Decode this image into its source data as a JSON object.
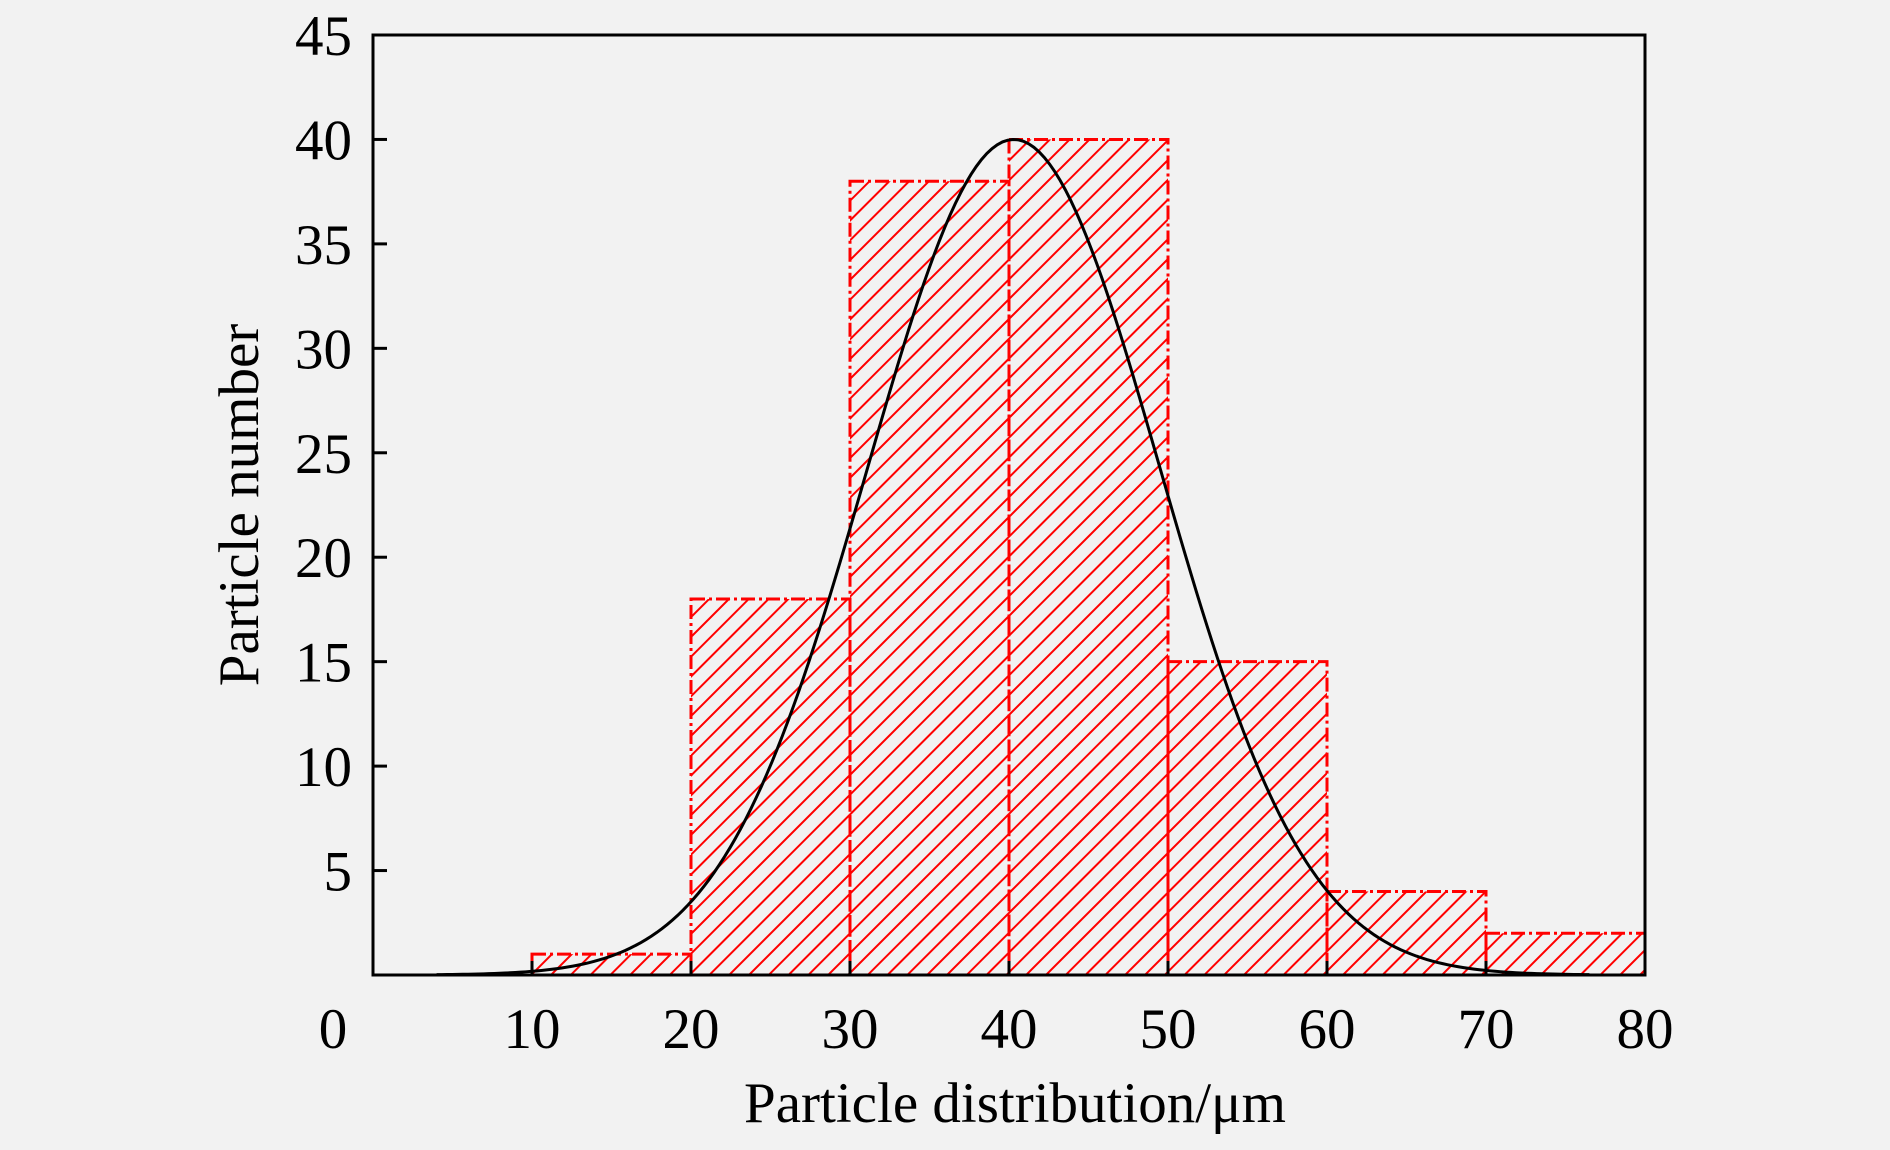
{
  "chart_data": {
    "type": "bar",
    "subtype": "histogram-with-fit",
    "title": "",
    "xlabel": "Particle distribution/μm",
    "ylabel": "Particle number",
    "xlim": [
      0,
      80
    ],
    "ylim": [
      0,
      45
    ],
    "x_ticks": [
      0,
      10,
      20,
      30,
      40,
      50,
      60,
      70,
      80
    ],
    "y_ticks": [
      5,
      10,
      15,
      20,
      25,
      30,
      35,
      40,
      45
    ],
    "bins": [
      {
        "from": 10,
        "to": 20,
        "value": 1
      },
      {
        "from": 20,
        "to": 30,
        "value": 18
      },
      {
        "from": 30,
        "to": 40,
        "value": 38
      },
      {
        "from": 40,
        "to": 50,
        "value": 40
      },
      {
        "from": 50,
        "to": 60,
        "value": 15
      },
      {
        "from": 60,
        "to": 70,
        "value": 4
      },
      {
        "from": 70,
        "to": 80,
        "value": 2
      }
    ],
    "fit_curve": {
      "type": "gaussian",
      "peak": 40,
      "center": 40.3,
      "sigma": 9.2,
      "x_range": [
        4,
        76.5
      ]
    },
    "bar_color": "#ff0000",
    "bar_fill": "hatched",
    "curve_color": "#000000",
    "grid": false,
    "legend": "none"
  }
}
